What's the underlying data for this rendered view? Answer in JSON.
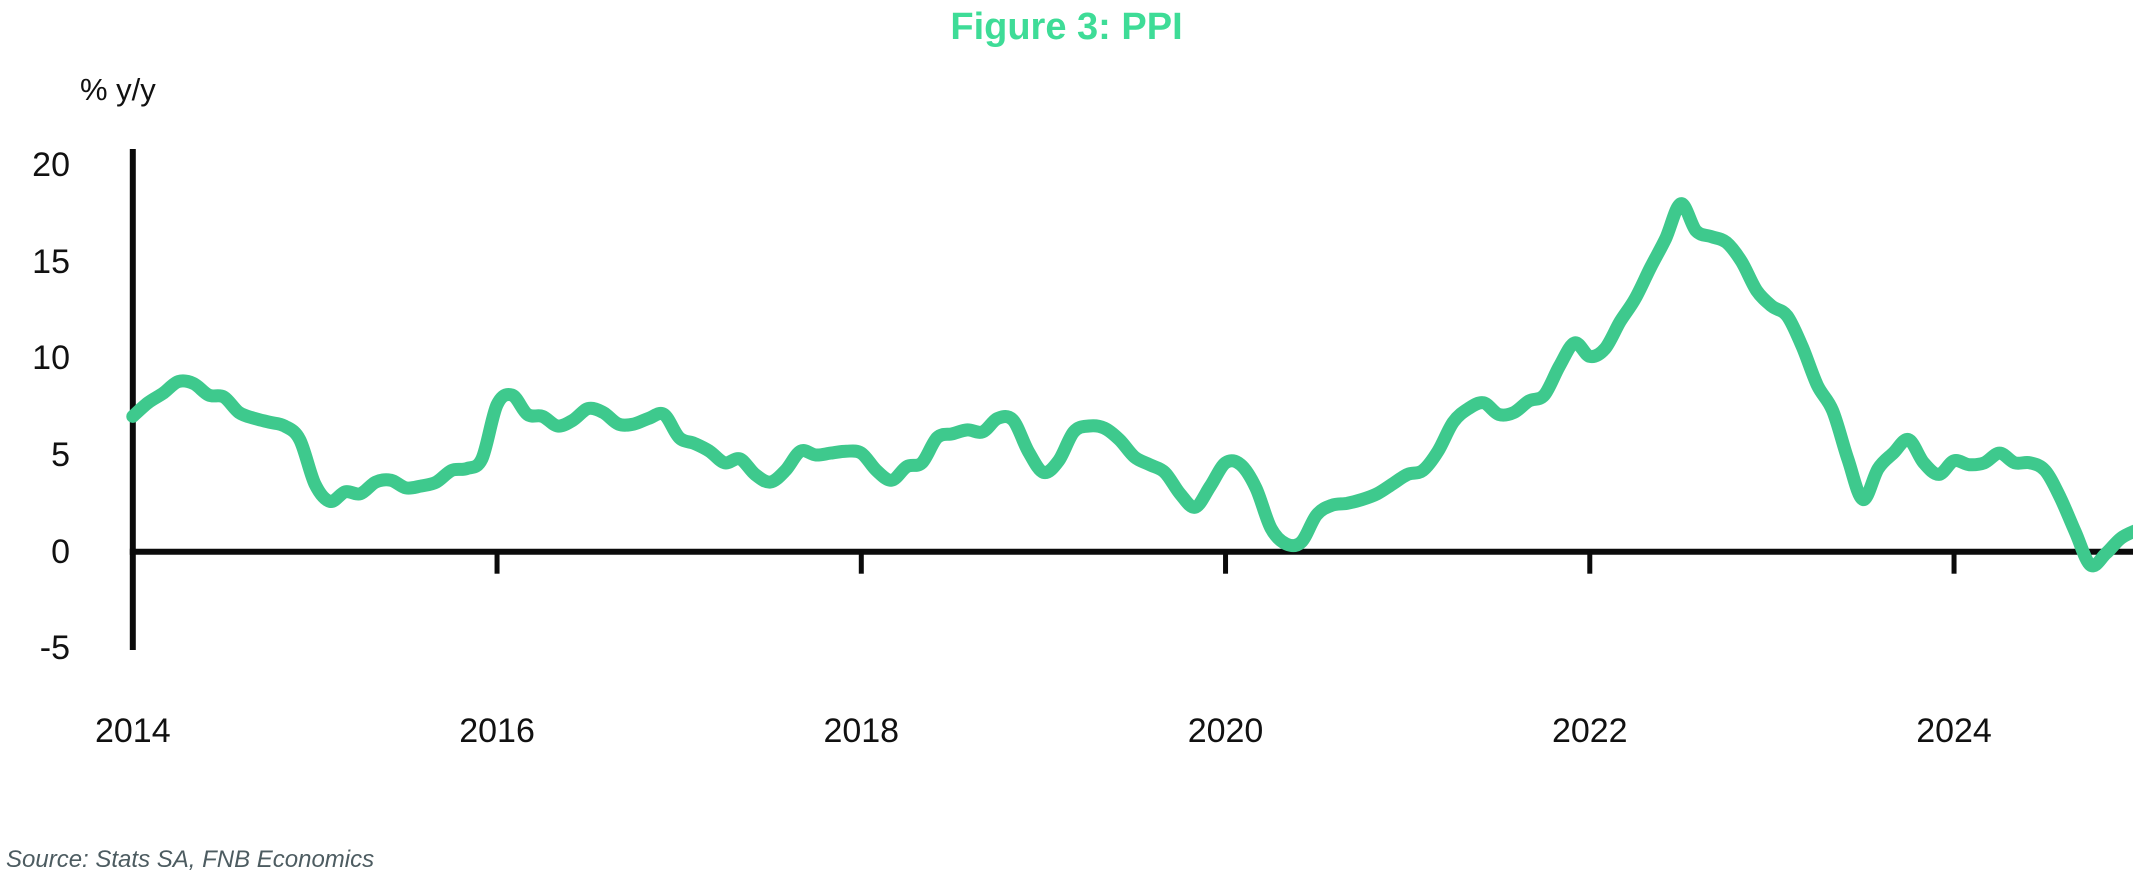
{
  "title": "Figure 3: PPI",
  "y_axis_label": "% y/y",
  "source": "Source: Stats SA, FNB Economics",
  "colors": {
    "title": "#3edc97",
    "line": "#3ec98d",
    "axis": "#0b0b0b",
    "text": "#111111",
    "source_text": "#4d5c61"
  },
  "chart_data": {
    "type": "line",
    "series_name": "PPI % y/y",
    "frequency": "monthly",
    "x_start": "2014-01",
    "x_end": "2025-01",
    "values": [
      7.0,
      7.7,
      8.2,
      8.8,
      8.7,
      8.1,
      8.0,
      7.2,
      6.9,
      6.7,
      6.5,
      5.8,
      3.5,
      2.6,
      3.1,
      3.0,
      3.6,
      3.7,
      3.3,
      3.4,
      3.6,
      4.2,
      4.3,
      4.8,
      7.6,
      8.1,
      7.1,
      7.0,
      6.5,
      6.8,
      7.4,
      7.2,
      6.6,
      6.6,
      6.9,
      7.1,
      5.9,
      5.6,
      5.2,
      4.6,
      4.8,
      4.0,
      3.6,
      4.2,
      5.2,
      5.0,
      5.1,
      5.2,
      5.1,
      4.2,
      3.7,
      4.4,
      4.6,
      5.9,
      6.1,
      6.3,
      6.2,
      6.9,
      6.8,
      5.2,
      4.1,
      4.7,
      6.2,
      6.5,
      6.4,
      5.8,
      4.9,
      4.5,
      4.1,
      3.0,
      2.3,
      3.4,
      4.6,
      4.5,
      3.3,
      1.2,
      0.4,
      0.5,
      1.9,
      2.4,
      2.5,
      2.7,
      3.0,
      3.5,
      4.0,
      4.2,
      5.2,
      6.7,
      7.4,
      7.7,
      7.1,
      7.2,
      7.8,
      8.1,
      9.6,
      10.8,
      10.1,
      10.5,
      11.9,
      13.1,
      14.7,
      16.2,
      18.0,
      16.6,
      16.3,
      16.0,
      15.0,
      13.5,
      12.7,
      12.2,
      10.6,
      8.6,
      7.3,
      4.8,
      2.7,
      4.3,
      5.1,
      5.8,
      4.6,
      4.0,
      4.7,
      4.5,
      4.6,
      5.1,
      4.6,
      4.6,
      4.2,
      2.8,
      1.0,
      -0.7,
      -0.1,
      0.7,
      1.1
    ],
    "x_tick_labels": [
      "2014",
      "2016",
      "2018",
      "2020",
      "2022",
      "2024"
    ],
    "x_tick_years": [
      2014,
      2016,
      2018,
      2020,
      2022,
      2024
    ],
    "y_tick_labels": [
      "20",
      "15",
      "10",
      "5",
      "0",
      "-5"
    ],
    "y_ticks": [
      20,
      15,
      10,
      5,
      0,
      -5
    ],
    "ylim": [
      -5,
      20
    ],
    "grid": false,
    "legend": false
  }
}
